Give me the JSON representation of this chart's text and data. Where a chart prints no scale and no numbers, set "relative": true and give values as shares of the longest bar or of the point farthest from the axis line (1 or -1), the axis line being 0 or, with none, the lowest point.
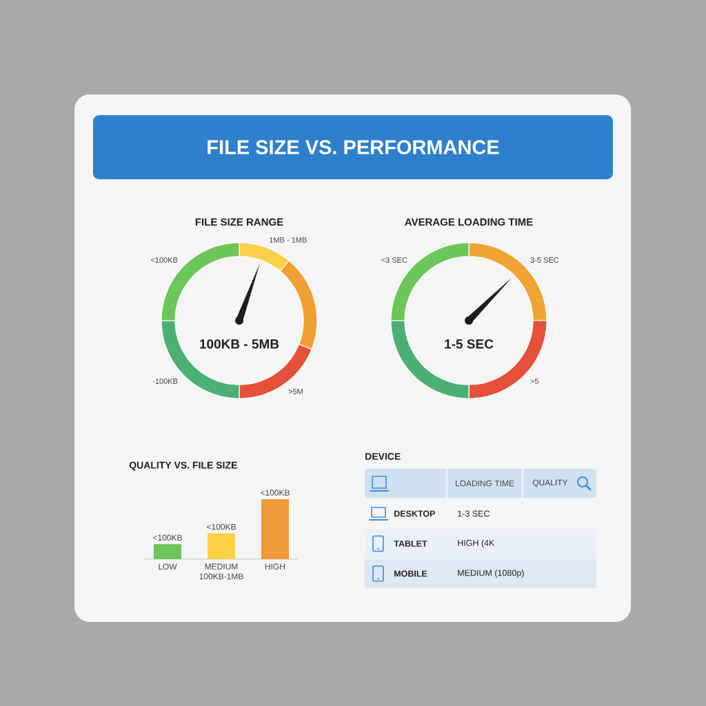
{
  "chart_data": [
    {
      "type": "other",
      "title": "FILE SIZE VS. PERFORMANCE"
    },
    {
      "type": "donut",
      "title": "FILE SIZE RANGE",
      "categories": [
        "1MB - 1MB",
        null,
        ">5M",
        "-100KB",
        "<100KB"
      ],
      "values": [
        11,
        20,
        19,
        25,
        25
      ],
      "colors": [
        "#fdd04a",
        "#f0a033",
        "#e4503a",
        "#4caf73",
        "#6cc65a"
      ],
      "needle": "1MB - 1MB",
      "annotations": [
        "100KB - 5MB"
      ]
    },
    {
      "type": "donut",
      "title": "AVERAGE LOADING TIME",
      "categories": [
        "3-5 SEC",
        ">5",
        null,
        "<3 SEC"
      ],
      "values": [
        25,
        25,
        25,
        25
      ],
      "colors": [
        "#f0a533",
        "#e4503a",
        "#4caf73",
        "#6cc65a"
      ],
      "needle": "3-5 SEC",
      "annotations": [
        "1-5 SEC"
      ]
    },
    {
      "type": "bar",
      "title": "QUALITY VS. FILE SIZE",
      "categories": [
        "LOW",
        "MEDIUM 100KB-1MB",
        "HIGH"
      ],
      "values": [
        0.25,
        0.43,
        1
      ],
      "colors": [
        "#6cc65a",
        "#fbd047",
        "#f09a38"
      ],
      "relative": true,
      "annotations": [
        {
          "text": "<100KB",
          "x": "LOW",
          "y": 0.25
        },
        {
          "text": "<100KB",
          "x": "MEDIUM 100KB-1MB",
          "y": 0.43
        },
        {
          "text": "<100KB",
          "x": "HIGH",
          "y": 1
        }
      ]
    },
    {
      "type": "other",
      "title": "DEVICE",
      "annotations": [
        "LOADING TIME",
        "QUALITY",
        "DESKTOP",
        "1-3 SEC",
        "TABLET",
        "HIGH (4K",
        "MOBILE",
        "MEDIUM (1080p)"
      ]
    }
  ]
}
